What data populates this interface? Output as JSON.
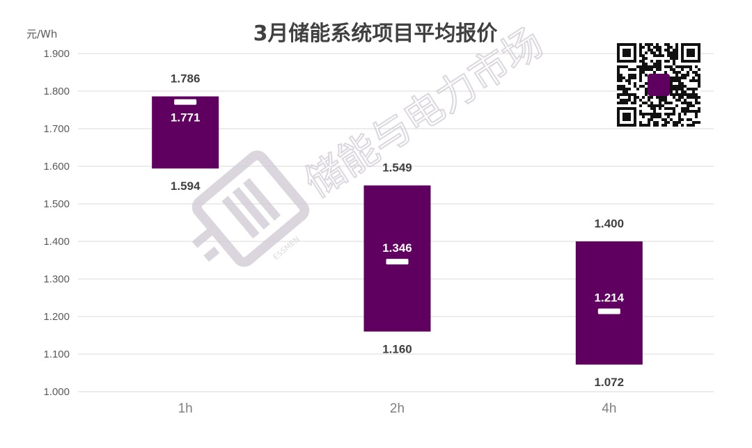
{
  "chart_data": {
    "type": "bar",
    "subtype": "floating-range",
    "title": "3月储能系统项目平均报价",
    "yunit": "元/Wh",
    "categories": [
      "1h",
      "2h",
      "4h"
    ],
    "series": [
      {
        "low": 1.594,
        "high": 1.786,
        "avg": 1.771
      },
      {
        "low": 1.16,
        "high": 1.549,
        "avg": 1.346
      },
      {
        "low": 1.072,
        "high": 1.4,
        "avg": 1.214
      }
    ],
    "ylim": [
      1.0,
      1.9
    ],
    "yticks": [
      "1.000",
      "1.100",
      "1.200",
      "1.300",
      "1.400",
      "1.500",
      "1.600",
      "1.700",
      "1.800",
      "1.900"
    ],
    "grid": true,
    "legend": "none",
    "colors": {
      "bar": "#5f0060",
      "marker": "#ffffff",
      "grid": "#d9d9d9"
    },
    "labels": [
      {
        "high": "1.786",
        "low": "1.594",
        "avg": "1.771"
      },
      {
        "high": "1.549",
        "low": "1.160",
        "avg": "1.346"
      },
      {
        "high": "1.400",
        "low": "1.072",
        "avg": "1.214"
      }
    ]
  },
  "watermark": {
    "text": "储能与电力市场",
    "logo_text": "ESSMEN"
  },
  "qr_code": {
    "icon": "qr-code-icon"
  }
}
